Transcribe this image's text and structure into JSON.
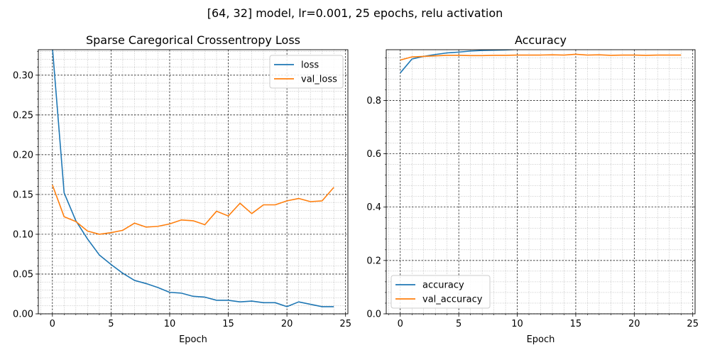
{
  "suptitle": "[64, 32] model, lr=0.001, 25 epochs, relu activation",
  "colors": {
    "loss": "#1f77b4",
    "val": "#ff7f0e",
    "grid_major": "#000000",
    "grid_minor": "#999999"
  },
  "chart_data": [
    {
      "type": "line",
      "title": "Sparse Caregorical Crossentropy Loss",
      "xlabel": "Epoch",
      "ylabel": "",
      "xlim": [
        -1.2,
        25.2
      ],
      "ylim": [
        0,
        0.332
      ],
      "xticks": [
        0,
        5,
        10,
        15,
        20,
        25
      ],
      "yticks": [
        0.0,
        0.05,
        0.1,
        0.15,
        0.2,
        0.25,
        0.3
      ],
      "ytick_labels": [
        "0.00",
        "0.05",
        "0.10",
        "0.15",
        "0.20",
        "0.25",
        "0.30"
      ],
      "grid": true,
      "legend": "top-right",
      "x": [
        0,
        1,
        2,
        3,
        4,
        5,
        6,
        7,
        8,
        9,
        10,
        11,
        12,
        13,
        14,
        15,
        16,
        17,
        18,
        19,
        20,
        21,
        22,
        23,
        24
      ],
      "series": [
        {
          "name": "loss",
          "color": "#1f77b4",
          "values": [
            0.335,
            0.152,
            0.117,
            0.094,
            0.074,
            0.062,
            0.051,
            0.042,
            0.038,
            0.033,
            0.027,
            0.026,
            0.022,
            0.021,
            0.017,
            0.017,
            0.015,
            0.016,
            0.014,
            0.014,
            0.009,
            0.015,
            0.012,
            0.009,
            0.009
          ]
        },
        {
          "name": "val_loss",
          "color": "#ff7f0e",
          "values": [
            0.162,
            0.122,
            0.116,
            0.104,
            0.1,
            0.102,
            0.105,
            0.114,
            0.109,
            0.11,
            0.113,
            0.118,
            0.117,
            0.112,
            0.129,
            0.123,
            0.139,
            0.126,
            0.137,
            0.137,
            0.142,
            0.145,
            0.141,
            0.142,
            0.159
          ]
        }
      ]
    },
    {
      "type": "line",
      "title": "Accuracy",
      "xlabel": "Epoch",
      "ylabel": "",
      "xlim": [
        -1.2,
        25.2
      ],
      "ylim": [
        0,
        0.99
      ],
      "xticks": [
        0,
        5,
        10,
        15,
        20,
        25
      ],
      "yticks": [
        0.0,
        0.2,
        0.4,
        0.6,
        0.8
      ],
      "ytick_labels": [
        "0.0",
        "0.2",
        "0.4",
        "0.6",
        "0.8"
      ],
      "grid": true,
      "legend": "bottom-left",
      "x": [
        0,
        1,
        2,
        3,
        4,
        5,
        6,
        7,
        8,
        9,
        10,
        11,
        12,
        13,
        14,
        15,
        16,
        17,
        18,
        19,
        20,
        21,
        22,
        23,
        24
      ],
      "series": [
        {
          "name": "accuracy",
          "color": "#1f77b4",
          "values": [
            0.903,
            0.955,
            0.965,
            0.972,
            0.978,
            0.981,
            0.985,
            0.987,
            0.988,
            0.989,
            0.991,
            0.992,
            0.993,
            0.993,
            0.994,
            0.995,
            0.995,
            0.996,
            0.996,
            0.996,
            0.997,
            0.997,
            0.997,
            0.997,
            0.998
          ]
        },
        {
          "name": "val_accuracy",
          "color": "#ff7f0e",
          "values": [
            0.951,
            0.963,
            0.965,
            0.967,
            0.969,
            0.969,
            0.968,
            0.968,
            0.969,
            0.969,
            0.97,
            0.97,
            0.97,
            0.971,
            0.97,
            0.973,
            0.97,
            0.971,
            0.969,
            0.97,
            0.97,
            0.969,
            0.97,
            0.97,
            0.97
          ]
        }
      ]
    }
  ]
}
